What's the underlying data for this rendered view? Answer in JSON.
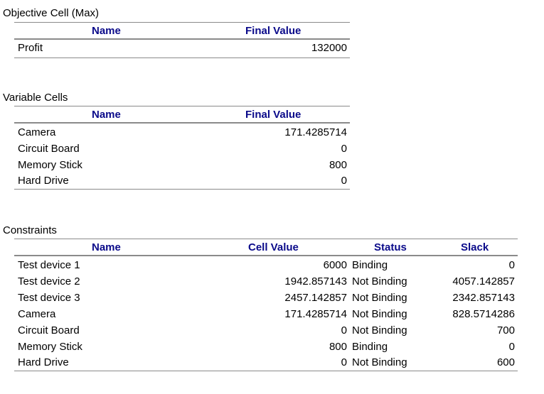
{
  "objective": {
    "title": "Objective Cell (Max)",
    "headers": {
      "name": "Name",
      "final_value": "Final Value"
    },
    "rows": [
      {
        "name": "Profit",
        "final_value": "132000"
      }
    ]
  },
  "variables": {
    "title": "Variable Cells",
    "headers": {
      "name": "Name",
      "final_value": "Final Value"
    },
    "rows": [
      {
        "name": "Camera",
        "final_value": "171.4285714"
      },
      {
        "name": "Circuit Board",
        "final_value": "0"
      },
      {
        "name": "Memory Stick",
        "final_value": "800"
      },
      {
        "name": "Hard Drive",
        "final_value": "0"
      }
    ]
  },
  "constraints": {
    "title": "Constraints",
    "headers": {
      "name": "Name",
      "cell_value": "Cell Value",
      "status": "Status",
      "slack": "Slack"
    },
    "rows": [
      {
        "name": "Test device 1",
        "cell_value": "6000",
        "status": "Binding",
        "slack": "0"
      },
      {
        "name": "Test device 2",
        "cell_value": "1942.857143",
        "status": "Not Binding",
        "slack": "4057.142857"
      },
      {
        "name": "Test device 3",
        "cell_value": "2457.142857",
        "status": "Not Binding",
        "slack": "2342.857143"
      },
      {
        "name": "Camera",
        "cell_value": "171.4285714",
        "status": "Not Binding",
        "slack": "828.5714286"
      },
      {
        "name": "Circuit Board",
        "cell_value": "0",
        "status": "Not Binding",
        "slack": "700"
      },
      {
        "name": "Memory Stick",
        "cell_value": "800",
        "status": "Binding",
        "slack": "0"
      },
      {
        "name": "Hard Drive",
        "cell_value": "0",
        "status": "Not Binding",
        "slack": "600"
      }
    ]
  }
}
